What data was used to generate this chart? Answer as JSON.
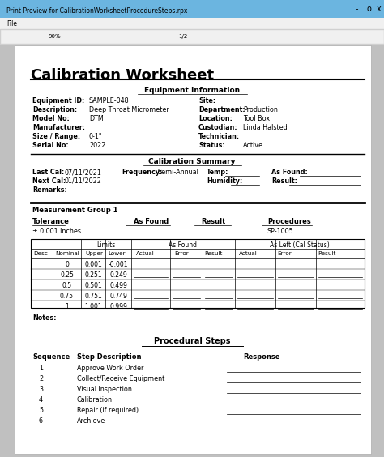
{
  "title": "Calibration Worksheet",
  "window_title": "Print Preview for CalibrationWorksheetProcedureSteps.rpx",
  "bg_color": "#c0c0c0",
  "paper_color": "#ffffff",
  "section_eq_info": "Equipment Information",
  "eq_fields_left": [
    "Equipment ID:",
    "Description:",
    "Model No:",
    "Manufacturer:",
    "Size / Range:",
    "Serial No:"
  ],
  "eq_values_left": [
    "SAMPLE-048",
    "Deep Throat Micrometer",
    "DTM",
    "",
    "0-1\"",
    "2022"
  ],
  "eq_fields_right": [
    "Site:",
    "Department:",
    "Location:",
    "Custodian:",
    "Technician:",
    "Status:"
  ],
  "eq_values_right": [
    "",
    "Production",
    "Tool Box",
    "Linda Halsted",
    "",
    "Active"
  ],
  "section_cal_summary": "Calibration Summary",
  "meas_group": "Measurement Group 1",
  "tolerance_label": "Tolerance",
  "tolerance_value": "± 0.001 Inches",
  "as_found_col": "As Found",
  "result_col": "Result",
  "procedures_col": "Procedures",
  "procedures_value": "SP-1005",
  "nominal_vals": [
    "0",
    "0.25",
    "0.5",
    "0.75",
    "1"
  ],
  "upper_vals": [
    "0.001",
    "0.251",
    "0.501",
    "0.751",
    "1.001"
  ],
  "lower_vals": [
    "-0.001",
    "0.249",
    "0.499",
    "0.749",
    "0.999"
  ],
  "notes_label": "Notes:",
  "section_proc_steps": "Procedural Steps",
  "seq_label": "Sequence",
  "step_desc_label": "Step Description",
  "response_label": "Response",
  "steps": [
    [
      "1",
      "Approve Work Order"
    ],
    [
      "2",
      "Collect/Receive Equipment"
    ],
    [
      "3",
      "Visual Inspection"
    ],
    [
      "4",
      "Calibration"
    ],
    [
      "5",
      "Repair (if required)"
    ],
    [
      "6",
      "Archieve"
    ]
  ]
}
